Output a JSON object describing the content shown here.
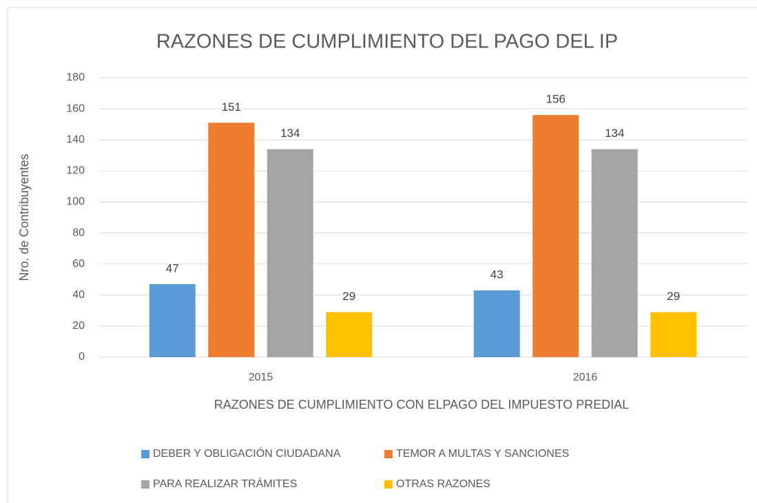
{
  "chart_data": {
    "type": "bar",
    "title": "RAZONES DE CUMPLIMIENTO DEL PAGO DEL IP",
    "x_label": "RAZONES DE CUMPLIMIENTO CON ELPAGO DEL IMPUESTO PREDIAL",
    "y_label": "Nro. de Contribuyentes",
    "categories": [
      "2015",
      "2016"
    ],
    "series": [
      {
        "name": "DEBER Y OBLIGACIÓN CIUDADANA",
        "color": "#5b9bd5",
        "values": [
          47,
          43
        ]
      },
      {
        "name": "TEMOR A MULTAS Y SANCIONES",
        "color": "#ed7d31",
        "values": [
          151,
          156
        ]
      },
      {
        "name": "PARA REALIZAR TRÁMITES",
        "color": "#a5a5a5",
        "values": [
          134,
          134
        ]
      },
      {
        "name": "OTRAS RAZONES",
        "color": "#ffc000",
        "values": [
          29,
          29
        ]
      }
    ],
    "ylim": [
      0,
      180
    ],
    "yticks": [
      0,
      20,
      40,
      60,
      80,
      100,
      120,
      140,
      160,
      180
    ],
    "grid": true,
    "legend": "bottom",
    "data_labels": true
  }
}
